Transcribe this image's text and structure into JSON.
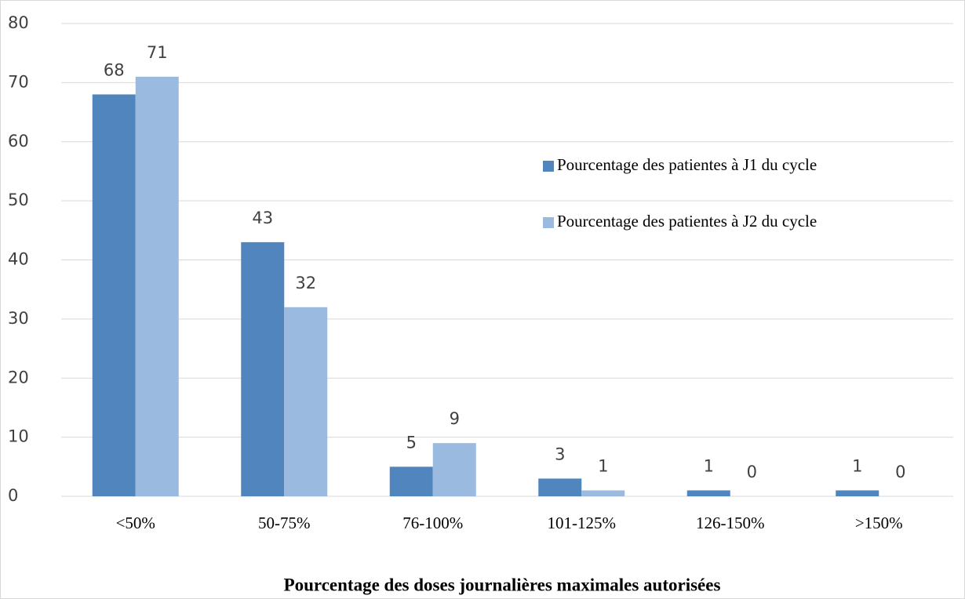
{
  "chart_data": {
    "type": "bar",
    "x_label": "Pourcentage des doses journalières maximales autorisées",
    "categories": [
      "<50%",
      "50-75%",
      "76-100%",
      "101-125%",
      "126-150%",
      ">150%"
    ],
    "series": [
      {
        "name": "Pourcentage des patientes à J1 du cycle",
        "color": "#5085bd",
        "values": [
          68,
          43,
          5,
          3,
          1,
          1
        ]
      },
      {
        "name": "Pourcentage des patientes à J2 du cycle",
        "color": "#9abae0",
        "values": [
          71,
          32,
          9,
          1,
          0,
          0
        ]
      }
    ],
    "ylim": [
      0,
      80
    ],
    "yticks": [
      0,
      10,
      20,
      30,
      40,
      50,
      60,
      70,
      80
    ],
    "grid": true,
    "legend": "right"
  }
}
